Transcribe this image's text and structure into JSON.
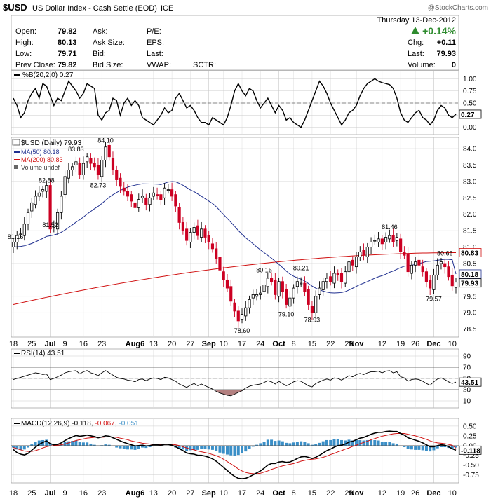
{
  "header": {
    "symbol": "$USD",
    "name": "US Dollar Index - Cash Settle (EOD)",
    "exchange": "ICE",
    "watermark": "@StockCharts.com",
    "date": "Thursday  13-Dec-2012",
    "change_pct": "+0.14%",
    "quote": {
      "open_label": "Open:",
      "open": "79.82",
      "high_label": "High:",
      "high": "80.13",
      "low_label": "Low:",
      "low": "79.71",
      "prev_label": "Prev Close:",
      "prev": "79.82",
      "ask_label": "Ask:",
      "asksize_label": "Ask Size:",
      "bid_label": "Bid:",
      "bidsize_label": "Bid Size:",
      "pe_label": "P/E:",
      "eps_label": "EPS:",
      "last_label": "Last:",
      "vwap_label": "VWAP:",
      "sctr_label": "SCTR:",
      "chg_label": "Chg:",
      "chg": "+0.11",
      "last2_label": "Last:",
      "last2": "79.93",
      "volume_label": "Volume:",
      "volume": "0"
    }
  },
  "colors": {
    "up": "#000000",
    "down": "#cc0022",
    "ma50": "#1f2f8f",
    "ma200": "#d01010",
    "histogram": "#3b8fc7",
    "rsi_fill": "#a06060",
    "macd_signal": "#d01010"
  },
  "chart_data": [
    {
      "type": "line",
      "panel": "%B",
      "title": "%B(20,2.0) 0.27",
      "yticks": [
        "1.00",
        "0.75",
        "0.50",
        "0.25",
        "0.00"
      ],
      "ylim": [
        -0.12,
        1.12
      ],
      "last_label": "0.27",
      "values": [
        0.6,
        0.45,
        0.2,
        0.3,
        0.55,
        0.7,
        0.8,
        0.6,
        0.9,
        0.85,
        0.65,
        0.45,
        0.6,
        0.55,
        0.75,
        0.95,
        0.85,
        0.75,
        0.6,
        0.7,
        0.9,
        0.85,
        0.8,
        0.25,
        0.15,
        0.3,
        0.35,
        0.6,
        0.55,
        0.25,
        0.5,
        0.6,
        0.45,
        0.55,
        0.45,
        0.2,
        0.15,
        0.1,
        0.05,
        0.15,
        0.25,
        0.4,
        0.3,
        0.35,
        0.6,
        0.7,
        0.55,
        0.4,
        0.45,
        0.35,
        0.2,
        0.1,
        0.1,
        0.05,
        0.2,
        0.15,
        0.1,
        0.05,
        0.2,
        0.45,
        0.75,
        0.9,
        0.75,
        0.65,
        0.8,
        0.75,
        0.55,
        0.4,
        0.5,
        0.6,
        0.45,
        0.3,
        0.45,
        0.35,
        0.15,
        0.2,
        0.1,
        0.05,
        0.0,
        0.15,
        0.35,
        0.55,
        0.75,
        0.95,
        0.85,
        0.7,
        0.5,
        0.35,
        0.2,
        0.05,
        0.15,
        0.3,
        0.35,
        0.45,
        0.65,
        0.8,
        0.9,
        0.95,
        1.0,
        0.95,
        0.92,
        0.9,
        0.88,
        0.8,
        0.6,
        0.3,
        0.15,
        0.1,
        0.2,
        0.3,
        0.35,
        0.2,
        0.15,
        0.05,
        0.15,
        0.35,
        0.45,
        0.4,
        0.25,
        0.2,
        0.27
      ]
    },
    {
      "type": "candlestick",
      "panel": "price",
      "title": "$USD (Daily) 79.93",
      "legend": [
        {
          "name": "MA(50) 80.18",
          "color": "#1f2f8f"
        },
        {
          "name": "MA(200) 80.83",
          "color": "#d01010"
        },
        {
          "name": "Volume undef",
          "color": "#666666"
        }
      ],
      "yticks": [
        "84.0",
        "83.5",
        "83.0",
        "82.5",
        "82.0",
        "81.5",
        "81.0",
        "80.5",
        "80.0",
        "79.5",
        "79.0",
        "78.5"
      ],
      "ylim": [
        78.3,
        84.3
      ],
      "annotations": [
        {
          "text": "81.16",
          "x": 0,
          "y": 81.16
        },
        {
          "text": "82.88",
          "x": 9,
          "y": 82.88
        },
        {
          "text": "81.52",
          "x": 10,
          "y": 81.52
        },
        {
          "text": "83.83",
          "x": 17,
          "y": 83.83
        },
        {
          "text": "84.10",
          "x": 25,
          "y": 84.1
        },
        {
          "text": "82.73",
          "x": 23,
          "y": 82.73
        },
        {
          "text": "78.60",
          "x": 62,
          "y": 78.6
        },
        {
          "text": "80.15",
          "x": 68,
          "y": 80.15
        },
        {
          "text": "79.10",
          "x": 74,
          "y": 79.1
        },
        {
          "text": "80.21",
          "x": 78,
          "y": 80.21
        },
        {
          "text": "78.93",
          "x": 81,
          "y": 78.93
        },
        {
          "text": "81.46",
          "x": 102,
          "y": 81.46
        },
        {
          "text": "80.66",
          "x": 117,
          "y": 80.66
        },
        {
          "text": "79.57",
          "x": 114,
          "y": 79.57
        }
      ],
      "right_labels": [
        {
          "text": "80.83",
          "y": 80.83
        },
        {
          "text": "80.18",
          "y": 80.18
        },
        {
          "text": "79.93",
          "y": 79.93
        }
      ],
      "close": [
        81.15,
        81.35,
        81.4,
        81.7,
        82.05,
        82.35,
        82.55,
        82.65,
        82.75,
        82.88,
        81.55,
        81.6,
        82.05,
        82.55,
        83.15,
        83.35,
        83.45,
        83.6,
        83.2,
        83.55,
        83.75,
        83.55,
        83.45,
        83.2,
        83.65,
        84.05,
        83.75,
        83.35,
        83.05,
        82.85,
        82.7,
        82.55,
        82.4,
        82.2,
        82.45,
        82.55,
        82.3,
        82.5,
        82.65,
        82.6,
        82.45,
        82.8,
        82.75,
        82.55,
        82.25,
        81.75,
        81.5,
        81.2,
        81.45,
        81.6,
        81.35,
        81.55,
        81.3,
        81.15,
        80.95,
        80.65,
        80.3,
        80.0,
        79.75,
        79.35,
        79.05,
        78.75,
        78.95,
        79.15,
        79.4,
        79.55,
        79.55,
        79.6,
        79.85,
        80.05,
        79.95,
        79.55,
        79.95,
        79.65,
        79.25,
        79.45,
        79.75,
        79.95,
        79.9,
        79.65,
        79.25,
        79.0,
        79.5,
        79.75,
        79.95,
        80.05,
        79.95,
        80.2,
        80.15,
        79.95,
        80.25,
        80.55,
        80.45,
        80.7,
        80.85,
        80.75,
        81.0,
        81.15,
        81.2,
        81.25,
        81.1,
        81.3,
        81.35,
        81.15,
        81.3,
        80.85,
        80.75,
        80.25,
        80.45,
        80.55,
        80.45,
        80.25,
        79.95,
        79.75,
        80.15,
        80.45,
        80.55,
        80.4,
        80.1,
        79.82,
        79.93
      ]
    },
    {
      "type": "line",
      "panel": "RSI",
      "title": "RSI(14) 43.51",
      "yticks": [
        "90",
        "70",
        "50",
        "30",
        "10"
      ],
      "ylim": [
        0,
        100
      ],
      "last_label": "43.51",
      "values": [
        48,
        50,
        52,
        54,
        56,
        58,
        60,
        59,
        57,
        58,
        48,
        50,
        53,
        56,
        60,
        62,
        63,
        64,
        58,
        62,
        64,
        60,
        58,
        55,
        60,
        64,
        60,
        56,
        52,
        50,
        49,
        47,
        46,
        44,
        48,
        49,
        46,
        49,
        51,
        50,
        48,
        52,
        51,
        48,
        45,
        40,
        37,
        34,
        38,
        41,
        37,
        40,
        37,
        34,
        31,
        27,
        24,
        22,
        20,
        19,
        22,
        25,
        28,
        33,
        36,
        38,
        39,
        40,
        43,
        46,
        44,
        40,
        45,
        41,
        37,
        40,
        44,
        46,
        45,
        41,
        37,
        35,
        41,
        44,
        47,
        49,
        47,
        51,
        50,
        47,
        51,
        55,
        53,
        57,
        59,
        57,
        60,
        62,
        62,
        63,
        60,
        63,
        64,
        60,
        62,
        53,
        51,
        45,
        48,
        49,
        48,
        45,
        41,
        38,
        44,
        49,
        51,
        48,
        44,
        41,
        43.5
      ]
    },
    {
      "type": "line",
      "panel": "MACD",
      "title": "MACD(12,26,9) -0.118, -0.067, -0.051",
      "title_parts": [
        "MACD(12,26,9)",
        "-0.118",
        "-0.067",
        "-0.051"
      ],
      "yticks": [
        "0.50",
        "0.25",
        "0.00",
        "-0.25",
        "-0.50",
        "-0.75"
      ],
      "ylim": [
        -0.92,
        0.66
      ],
      "right_labels": [
        {
          "text": "-0.118",
          "y": -0.118
        }
      ],
      "series": [
        {
          "name": "MACD",
          "values": [
            -0.1,
            -0.18,
            -0.22,
            -0.24,
            -0.2,
            -0.12,
            -0.04,
            0.03,
            0.08,
            0.12,
            0.05,
            0.02,
            0.03,
            0.07,
            0.13,
            0.18,
            0.22,
            0.26,
            0.24,
            0.25,
            0.27,
            0.25,
            0.23,
            0.2,
            0.22,
            0.25,
            0.24,
            0.2,
            0.16,
            0.12,
            0.08,
            0.05,
            0.02,
            -0.01,
            0.0,
            0.01,
            -0.01,
            0.0,
            0.02,
            0.02,
            0.01,
            0.03,
            0.03,
            0.01,
            -0.03,
            -0.08,
            -0.13,
            -0.19,
            -0.21,
            -0.22,
            -0.25,
            -0.25,
            -0.27,
            -0.3,
            -0.34,
            -0.4,
            -0.48,
            -0.56,
            -0.64,
            -0.72,
            -0.79,
            -0.84,
            -0.85,
            -0.84,
            -0.8,
            -0.75,
            -0.7,
            -0.65,
            -0.58,
            -0.5,
            -0.46,
            -0.46,
            -0.42,
            -0.41,
            -0.43,
            -0.42,
            -0.38,
            -0.33,
            -0.29,
            -0.28,
            -0.3,
            -0.33,
            -0.3,
            -0.25,
            -0.19,
            -0.13,
            -0.09,
            -0.04,
            0.0,
            0.01,
            0.04,
            0.09,
            0.11,
            0.15,
            0.19,
            0.21,
            0.25,
            0.29,
            0.32,
            0.34,
            0.34,
            0.36,
            0.37,
            0.36,
            0.36,
            0.31,
            0.27,
            0.2,
            0.17,
            0.14,
            0.11,
            0.07,
            0.02,
            -0.03,
            -0.03,
            0.0,
            0.02,
            0.01,
            -0.03,
            -0.08,
            -0.118
          ]
        },
        {
          "name": "Signal",
          "values": [
            -0.05,
            -0.08,
            -0.11,
            -0.14,
            -0.15,
            -0.15,
            -0.13,
            -0.1,
            -0.06,
            -0.03,
            -0.01,
            0.0,
            0.01,
            0.02,
            0.04,
            0.07,
            0.1,
            0.13,
            0.15,
            0.17,
            0.19,
            0.2,
            0.21,
            0.21,
            0.21,
            0.22,
            0.22,
            0.22,
            0.21,
            0.19,
            0.17,
            0.15,
            0.12,
            0.1,
            0.08,
            0.06,
            0.05,
            0.04,
            0.03,
            0.03,
            0.03,
            0.03,
            0.03,
            0.03,
            0.02,
            0.0,
            -0.03,
            -0.06,
            -0.09,
            -0.11,
            -0.14,
            -0.16,
            -0.18,
            -0.2,
            -0.23,
            -0.26,
            -0.3,
            -0.35,
            -0.41,
            -0.47,
            -0.53,
            -0.6,
            -0.65,
            -0.69,
            -0.71,
            -0.72,
            -0.72,
            -0.71,
            -0.68,
            -0.65,
            -0.61,
            -0.58,
            -0.55,
            -0.52,
            -0.5,
            -0.48,
            -0.46,
            -0.43,
            -0.4,
            -0.38,
            -0.36,
            -0.35,
            -0.34,
            -0.32,
            -0.3,
            -0.27,
            -0.23,
            -0.2,
            -0.16,
            -0.13,
            -0.09,
            -0.06,
            -0.02,
            0.01,
            0.05,
            0.08,
            0.11,
            0.15,
            0.18,
            0.21,
            0.24,
            0.26,
            0.28,
            0.3,
            0.31,
            0.31,
            0.31,
            0.29,
            0.27,
            0.25,
            0.22,
            0.19,
            0.16,
            0.12,
            0.09,
            0.07,
            0.06,
            0.05,
            0.03,
            0.01,
            -0.067
          ]
        }
      ]
    }
  ],
  "x_axis": {
    "labels": [
      {
        "text": "18",
        "i": 0
      },
      {
        "text": "25",
        "i": 5
      },
      {
        "text": "Jul",
        "i": 10,
        "bold": true
      },
      {
        "text": "9",
        "i": 14
      },
      {
        "text": "16",
        "i": 19
      },
      {
        "text": "23",
        "i": 24
      },
      {
        "text": "Aug6",
        "i": 33,
        "bold": true
      },
      {
        "text": "13",
        "i": 38
      },
      {
        "text": "20",
        "i": 43
      },
      {
        "text": "27",
        "i": 48
      },
      {
        "text": "Sep",
        "i": 53,
        "bold": true
      },
      {
        "text": "10",
        "i": 57
      },
      {
        "text": "17",
        "i": 62
      },
      {
        "text": "24",
        "i": 67
      },
      {
        "text": "Oct",
        "i": 72,
        "bold": true
      },
      {
        "text": "8",
        "i": 76
      },
      {
        "text": "15",
        "i": 81
      },
      {
        "text": "22",
        "i": 86
      },
      {
        "text": "29",
        "i": 91
      },
      {
        "text": "Nov",
        "i": 93,
        "bold": true
      },
      {
        "text": "12",
        "i": 100
      },
      {
        "text": "19",
        "i": 105
      },
      {
        "text": "26",
        "i": 109
      },
      {
        "text": "Dec",
        "i": 114,
        "bold": true
      },
      {
        "text": "10",
        "i": 119
      }
    ]
  }
}
